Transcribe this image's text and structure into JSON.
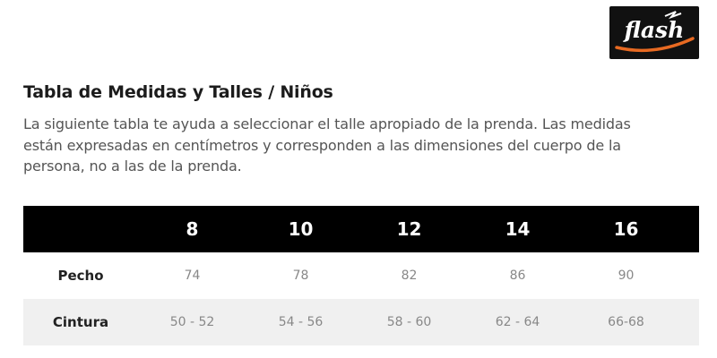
{
  "brand": {
    "logo_text": "flash"
  },
  "heading": {
    "title": "Tabla de Medidas y Talles / Niños"
  },
  "description": {
    "line1": "La siguiente tabla te ayuda a seleccionar el talle apropiado de la prenda. Las medidas",
    "line2": "están expresadas en centímetros y corresponden a las dimensiones del cuerpo de la",
    "line3": "persona, no a las de la prenda."
  },
  "size_table": {
    "sizes": [
      "8",
      "10",
      "12",
      "14",
      "16"
    ],
    "rows": [
      {
        "label": "Pecho",
        "values": [
          "74",
          "78",
          "82",
          "86",
          "90"
        ]
      },
      {
        "label": "Cintura",
        "values": [
          "50 - 52",
          "54 - 56",
          "58 - 60",
          "62 - 64",
          "66-68"
        ]
      }
    ]
  }
}
